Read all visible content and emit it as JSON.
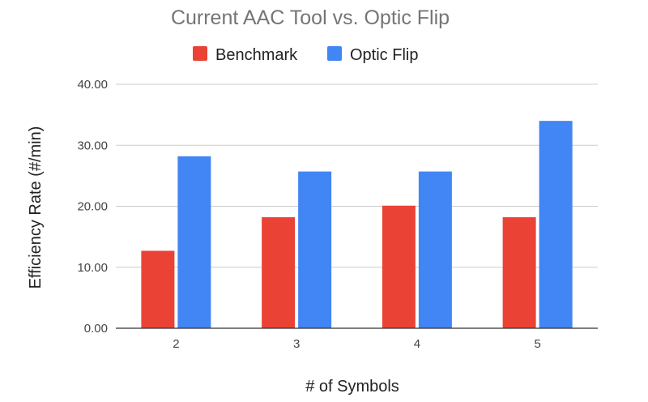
{
  "chart_data": {
    "type": "bar",
    "title": "Current AAC Tool vs. Optic Flip",
    "xlabel": "# of Symbols",
    "ylabel": "Efficiency Rate (#/min)",
    "categories": [
      "2",
      "3",
      "4",
      "5"
    ],
    "series": [
      {
        "name": "Benchmark",
        "color": "#ea4335",
        "values": [
          12.7,
          18.2,
          20.1,
          18.2
        ]
      },
      {
        "name": "Optic Flip",
        "color": "#4285f4",
        "values": [
          28.2,
          25.7,
          25.7,
          34.0
        ]
      }
    ],
    "ylim": [
      0,
      40
    ],
    "yticks": [
      "0.00",
      "10.00",
      "20.00",
      "30.00",
      "40.00"
    ],
    "grid": true,
    "legend_position": "top"
  }
}
